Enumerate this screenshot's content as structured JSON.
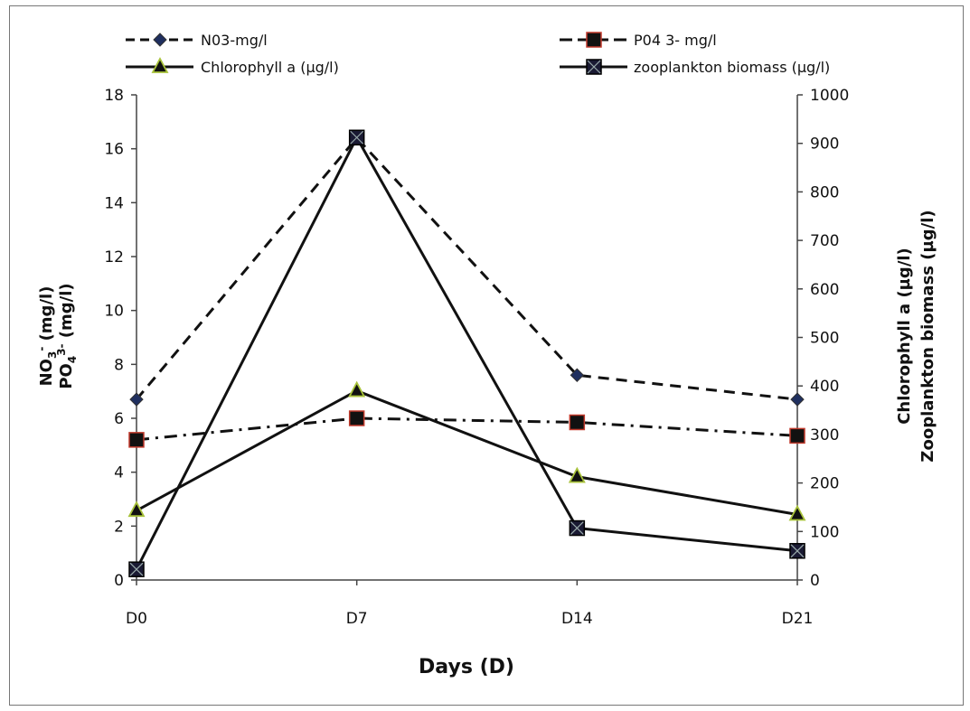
{
  "chart_data": {
    "type": "line",
    "title": "",
    "categories": [
      "D0",
      "D7",
      "D14",
      "D21"
    ],
    "xlabel": "Days (D)",
    "ylabel_left": {
      "line1_base": "NO",
      "line1_sub": "3",
      "line1_sup": "-",
      "line1_rest": " (mg/l)",
      "line2_base": "PO",
      "line2_sub": "4",
      "line2_sup": "3-",
      "line2_rest": " (mg/l)"
    },
    "ylabel_right": [
      "Chlorophyll a (µg/l)",
      "Zooplankton biomass (µg/l)"
    ],
    "ylim_left": [
      0,
      18
    ],
    "yticks_left": [
      "0",
      "2",
      "4",
      "6",
      "8",
      "10",
      "12",
      "14",
      "16",
      "18"
    ],
    "ylim_right": [
      0,
      1000
    ],
    "yticks_right": [
      "0",
      "100",
      "200",
      "300",
      "400",
      "500",
      "600",
      "700",
      "800",
      "900",
      "1000"
    ],
    "grid": false,
    "legend_position": "top",
    "series": [
      {
        "name": "N03-mg/l",
        "axis": "left",
        "values": [
          6.7,
          16.4,
          7.6,
          6.7
        ],
        "marker": "diamond",
        "line": "dashed",
        "marker_color": "#1f2f5f"
      },
      {
        "name": "P04 3- mg/l",
        "axis": "left",
        "values": [
          5.2,
          6.0,
          5.85,
          5.35
        ],
        "marker": "square",
        "line": "dashdot",
        "marker_color": "#111111",
        "marker_edge": "#c0392b"
      },
      {
        "name": "Chlorophyll a (µg/l)",
        "axis": "right",
        "values": [
          143,
          390,
          213,
          135
        ],
        "marker": "triangle",
        "line": "solid",
        "marker_color": "#111111",
        "marker_edge": "#a8c23a"
      },
      {
        "name": "zooplankton biomass (µg/l)",
        "axis": "right",
        "values": [
          22,
          912,
          107,
          60
        ],
        "marker": "xsquare",
        "line": "solid",
        "marker_color": "#1a1a33"
      }
    ]
  }
}
